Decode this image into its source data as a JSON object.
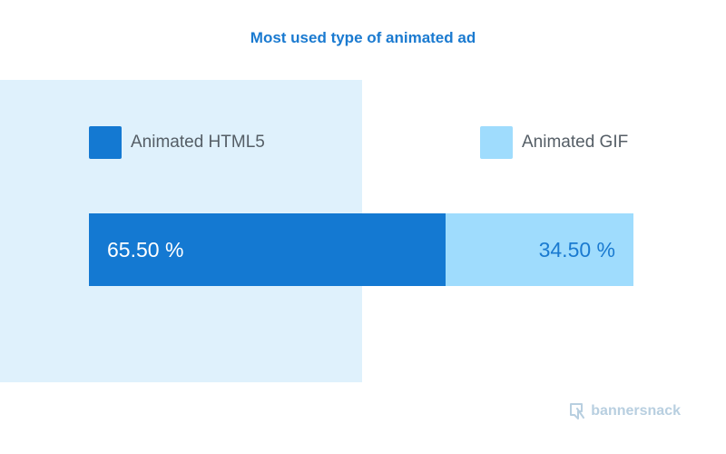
{
  "chart_data": {
    "type": "bar",
    "orientation": "horizontal-stacked",
    "title": "Most used type of animated ad",
    "categories": [
      "Animated HTML5",
      "Animated GIF"
    ],
    "values": [
      65.5,
      34.5
    ],
    "value_labels": [
      "65.50 %",
      "34.50 %"
    ],
    "unit": "%",
    "xlim": [
      0,
      100
    ],
    "colors": [
      "#1479d2",
      "#9fdcfd"
    ],
    "label_colors": [
      "#ffffff",
      "#1a7ad0"
    ],
    "legend_position": "top",
    "grid": false
  },
  "brand": {
    "name": "bannersnack",
    "color": "#b8cfe0",
    "icon": "bannersnack-logo-icon"
  }
}
